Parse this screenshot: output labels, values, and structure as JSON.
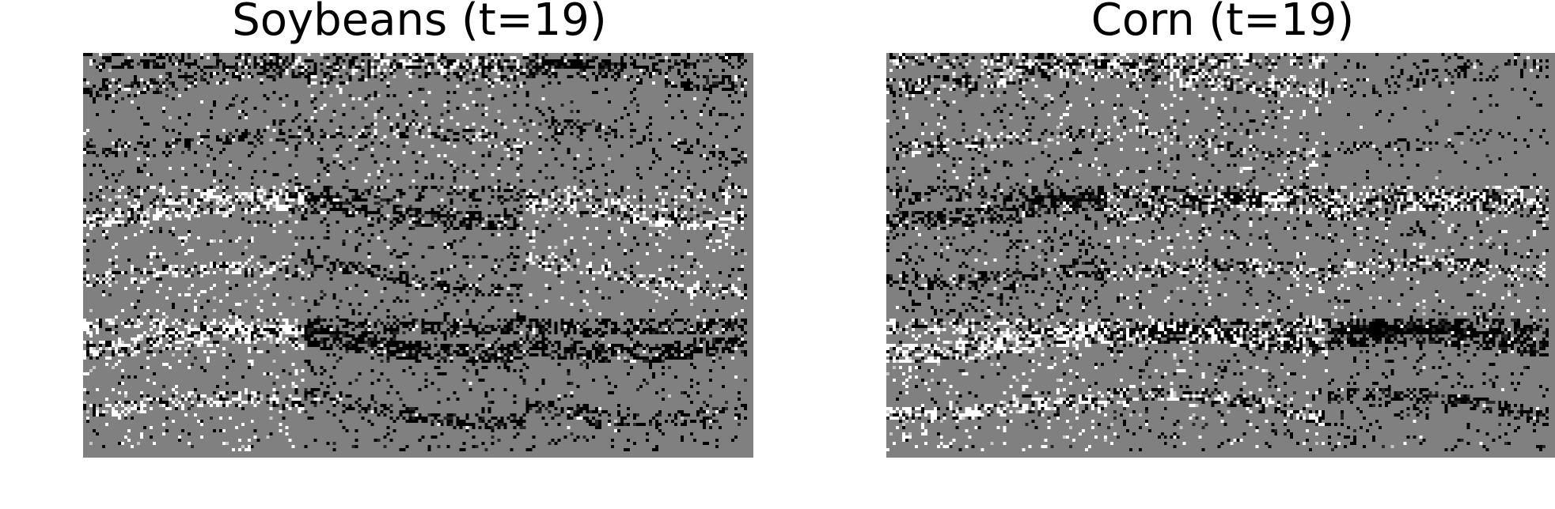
{
  "panels": [
    {
      "title": "Soybeans (t=19)",
      "alt": "Grid of 3x3 grayscale satellite crop patches for soybeans at time step 19"
    },
    {
      "title": "Corn (t=19)",
      "alt": "Grid of 3x3 grayscale satellite crop patches for corn at time step 19"
    }
  ],
  "colors": {
    "background": "#808080",
    "dark": "#000000",
    "light": "#ffffff"
  }
}
